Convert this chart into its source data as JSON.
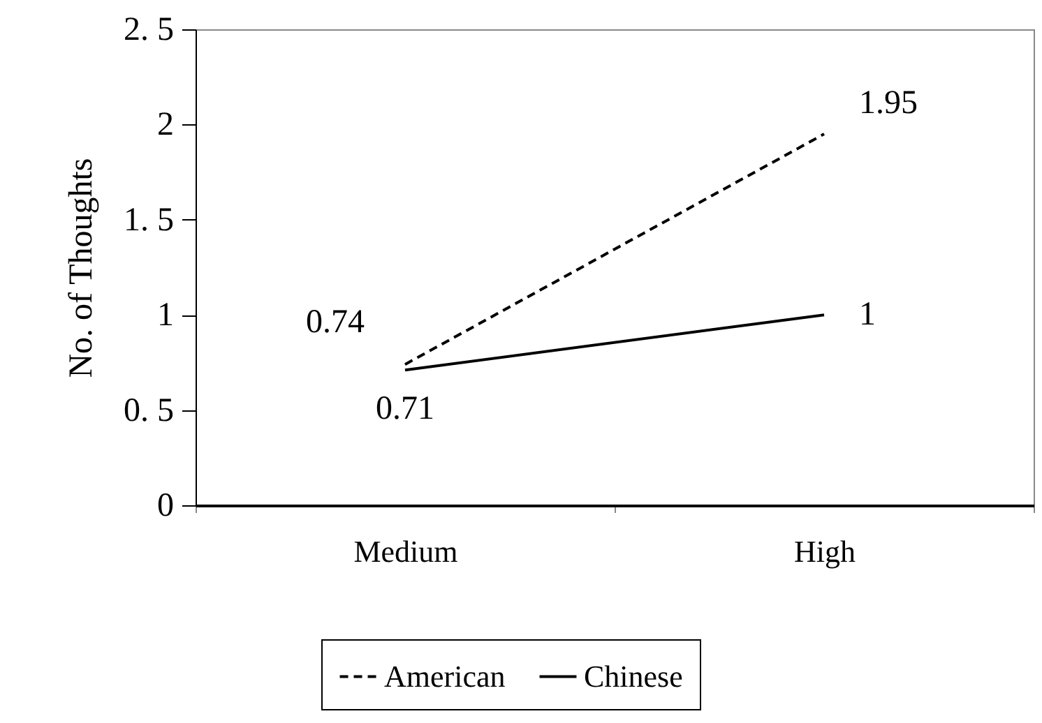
{
  "chart_data": {
    "type": "line",
    "ylabel": "No. of Thoughts",
    "categories": [
      "Medium",
      "High"
    ],
    "series": [
      {
        "name": "American",
        "color": "#000000",
        "line_style": "dashed",
        "values": [
          0.74,
          1.95
        ]
      },
      {
        "name": "Chinese",
        "color": "#000000",
        "line_style": "solid",
        "values": [
          0.71,
          1
        ]
      }
    ],
    "ylim": [
      0,
      2.5
    ],
    "yticks": [
      0,
      {
        "value": 0.5,
        "label": "0. 5"
      },
      1,
      {
        "value": 1.5,
        "label": "1. 5"
      },
      2,
      {
        "value": 2.5,
        "label": "2. 5"
      }
    ],
    "data_labels": true,
    "legend": "bottom",
    "marker": "none",
    "grid": false
  }
}
